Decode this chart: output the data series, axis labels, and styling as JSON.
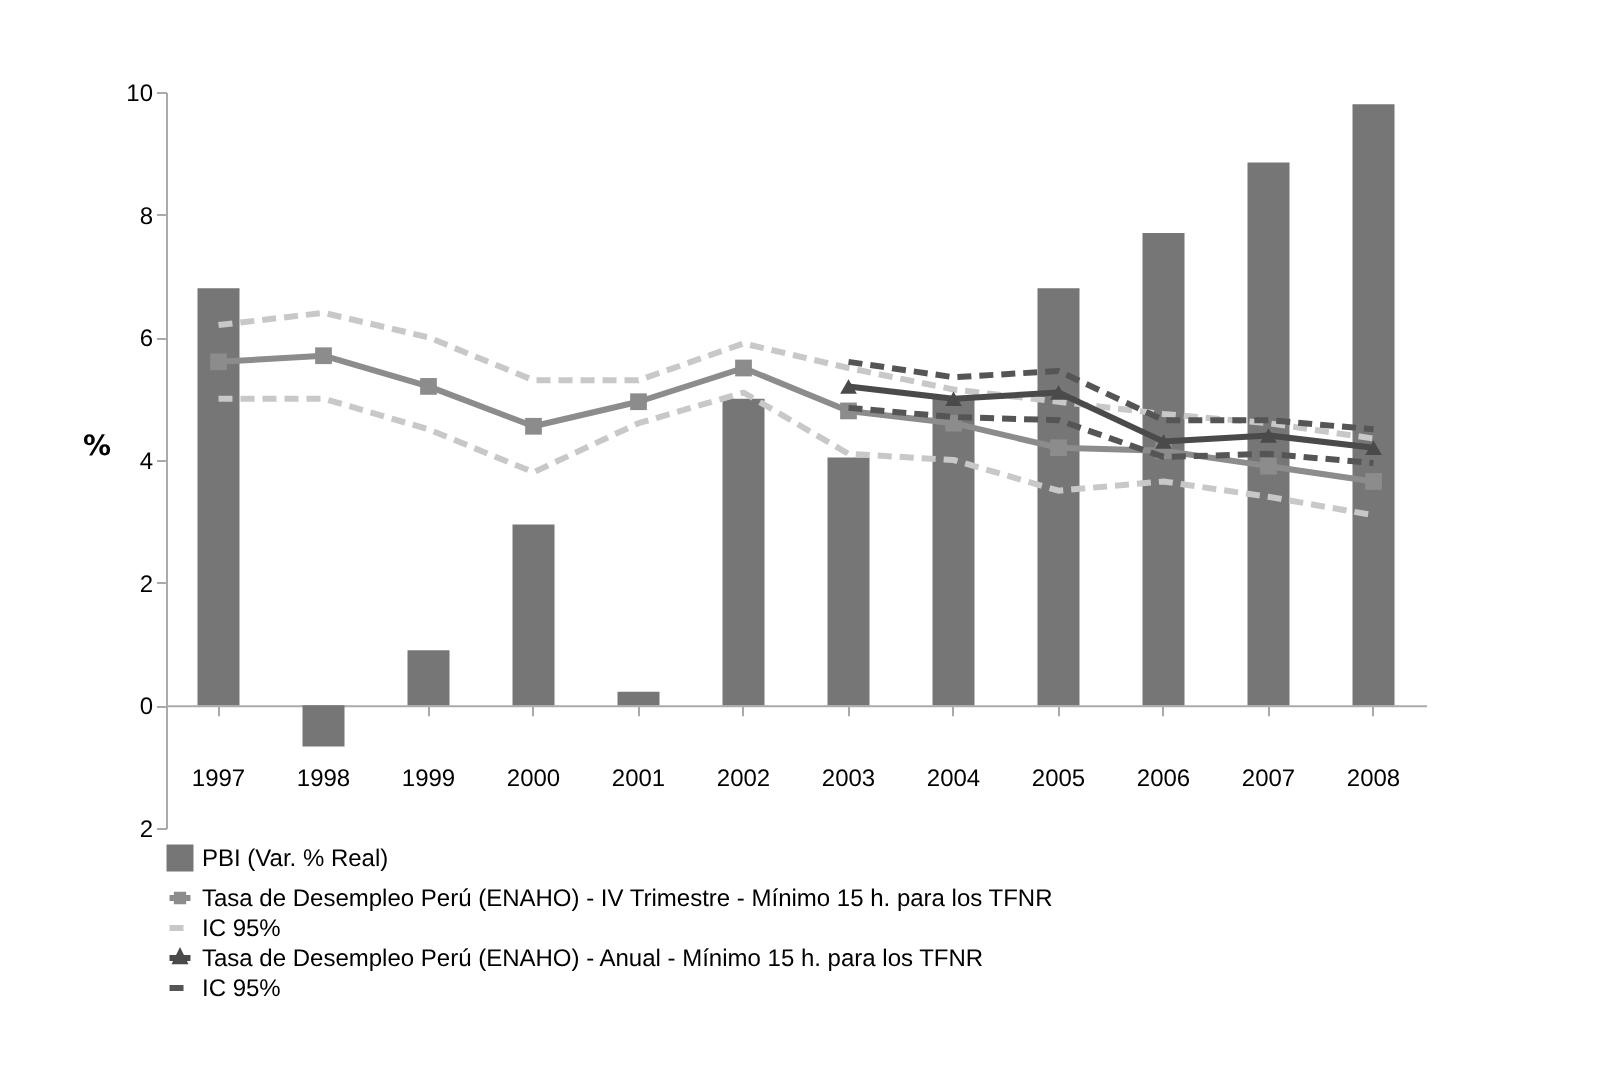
{
  "chart_data": {
    "type": "bar",
    "ylabel": "%",
    "categories": [
      "1997",
      "1998",
      "1999",
      "2000",
      "2001",
      "2002",
      "2003",
      "2004",
      "2005",
      "2006",
      "2007",
      "2008"
    ],
    "ylim": [
      -2,
      10
    ],
    "yticks": [
      {
        "value": -2,
        "label": "2"
      },
      0,
      2,
      4,
      6,
      8,
      10
    ],
    "grid": false,
    "legend": "bottom left",
    "series": [
      {
        "name": "PBI (Var. % Real)",
        "color": "#767676",
        "values": [
          6.8,
          -0.67,
          0.9,
          2.95,
          0.22,
          5.0,
          4.04,
          5.0,
          6.8,
          7.7,
          8.85,
          9.8
        ]
      },
      {
        "name": "Tasa de Desempleo Perú (ENAHO) - IV Trimestre - Mínimo 15 h. para los TFNR",
        "type": "line",
        "color": "#8c8c8c",
        "marker": "square",
        "line_style": "solid",
        "values": [
          5.6,
          5.7,
          5.2,
          4.55,
          4.95,
          5.5,
          4.8,
          4.6,
          4.2,
          4.15,
          3.9,
          3.65
        ]
      },
      {
        "name": "IC 95%",
        "type": "line",
        "color": "#c8c8c8",
        "marker": "none",
        "line_style": "dashed",
        "values": [
          6.2,
          6.4,
          6.0,
          5.3,
          5.3,
          5.9,
          5.5,
          5.15,
          4.95,
          4.75,
          4.6,
          4.35
        ]
      },
      {
        "type": "line",
        "color": "#c8c8c8",
        "marker": "none",
        "line_style": "dashed",
        "values": [
          5.0,
          5.0,
          4.5,
          3.8,
          4.6,
          5.1,
          4.1,
          4.0,
          3.5,
          3.65,
          3.4,
          3.1
        ]
      },
      {
        "name": "Tasa de Desempleo Perú (ENAHO) - Anual - Mínimo 15 h. para los TFNR",
        "type": "line",
        "color": "#4a4a4a",
        "marker": "triangle",
        "line_style": "solid",
        "values": [
          null,
          null,
          null,
          null,
          null,
          null,
          5.2,
          5.0,
          5.1,
          4.3,
          4.4,
          4.2
        ]
      },
      {
        "name": "IC 95%",
        "type": "line",
        "color": "#555555",
        "marker": "none",
        "line_style": "dashed",
        "values": [
          null,
          null,
          null,
          null,
          null,
          null,
          5.6,
          5.35,
          5.45,
          4.65,
          4.65,
          4.5
        ]
      },
      {
        "type": "line",
        "color": "#555555",
        "marker": "none",
        "line_style": "dashed",
        "values": [
          null,
          null,
          null,
          null,
          null,
          null,
          4.85,
          4.7,
          4.65,
          4.05,
          4.1,
          3.95
        ]
      }
    ]
  }
}
